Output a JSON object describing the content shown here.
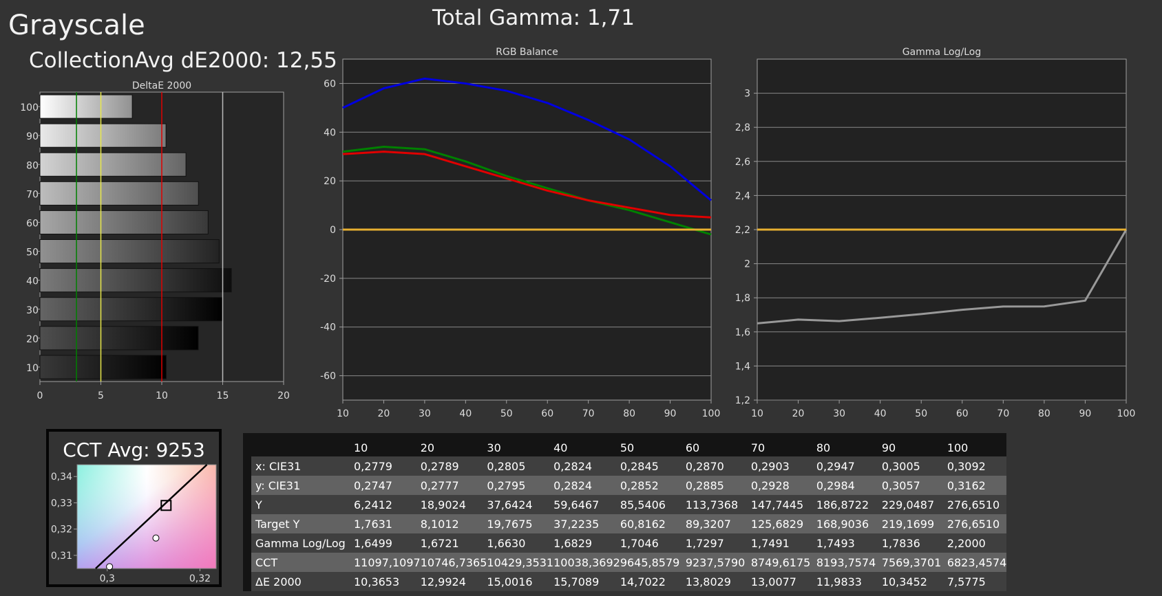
{
  "header": {
    "title": "Grayscale",
    "collection_avg": "CollectionAvg dE2000: 12,55",
    "total_gamma": "Total Gamma: 1,71"
  },
  "colors": {
    "background": "#333333",
    "plot_background": "#222222",
    "red": "#e00000",
    "green": "#008000",
    "blue": "#0000e0",
    "yellow": "#e8d84a",
    "gold": "#e8b030",
    "gray_line": "#999999"
  },
  "chart_data": [
    {
      "type": "bar",
      "orientation": "horizontal",
      "title": "DeltaE 2000",
      "categories": [
        "100",
        "90",
        "80",
        "70",
        "60",
        "50",
        "40",
        "30",
        "20",
        "10"
      ],
      "values": [
        7.5775,
        10.3452,
        11.9833,
        13.0077,
        13.8029,
        14.7022,
        15.7089,
        15.0016,
        12.9924,
        10.3653
      ],
      "xlim": [
        0,
        20
      ],
      "xticks": [
        "0",
        "5",
        "10",
        "15",
        "20"
      ],
      "reference_lines": [
        {
          "x": 3,
          "color": "#008000"
        },
        {
          "x": 5,
          "color": "#e8e84a"
        },
        {
          "x": 10,
          "color": "#e00000"
        },
        {
          "x": 15,
          "color": "#bbbbbb"
        }
      ]
    },
    {
      "type": "line",
      "title": "RGB Balance",
      "x": [
        10,
        20,
        30,
        40,
        50,
        60,
        70,
        80,
        90,
        100
      ],
      "xticks": [
        "10",
        "20",
        "30",
        "40",
        "50",
        "60",
        "70",
        "80",
        "90",
        "100"
      ],
      "ylim": [
        -70,
        70
      ],
      "yticks": [
        "60",
        "40",
        "20",
        "0",
        "-20",
        "-40",
        "-60"
      ],
      "series": [
        {
          "color": "#0000e0",
          "values": [
            50,
            58,
            62,
            60,
            57,
            52,
            45,
            37,
            26,
            12
          ]
        },
        {
          "color": "#008000",
          "values": [
            32,
            34,
            33,
            28,
            22,
            17,
            12,
            8,
            3,
            -2
          ]
        },
        {
          "color": "#e00000",
          "values": [
            31,
            32,
            31,
            26,
            21,
            16,
            12,
            9,
            6,
            5
          ]
        },
        {
          "color": "#e8b030",
          "values": [
            0,
            0,
            0,
            0,
            0,
            0,
            0,
            0,
            0,
            0
          ]
        }
      ]
    },
    {
      "type": "line",
      "title": "Gamma Log/Log",
      "x": [
        10,
        20,
        30,
        40,
        50,
        60,
        70,
        80,
        90,
        100
      ],
      "xticks": [
        "10",
        "20",
        "30",
        "40",
        "50",
        "60",
        "70",
        "80",
        "90",
        "100"
      ],
      "ylim": [
        1.2,
        3.2
      ],
      "yticks": [
        "3",
        "2,8",
        "2,6",
        "2,4",
        "2,2",
        "2",
        "1,8",
        "1,6",
        "1,4",
        "1,2"
      ],
      "series": [
        {
          "color": "#999999",
          "values": [
            1.6499,
            1.6721,
            1.663,
            1.6829,
            1.7046,
            1.7297,
            1.7491,
            1.7493,
            1.7836,
            2.2
          ]
        },
        {
          "color": "#e8b030",
          "values": [
            2.2,
            2.2,
            2.2,
            2.2,
            2.2,
            2.2,
            2.2,
            2.2,
            2.2,
            2.2
          ]
        }
      ]
    },
    {
      "type": "scatter",
      "title": "CCT Avg: 9253",
      "xlim": [
        0.2935,
        0.3235
      ],
      "ylim": [
        0.305,
        0.3445
      ],
      "xticks": [
        "0,3",
        "0,32"
      ],
      "yticks": [
        "0,34",
        "0,33",
        "0,32",
        "0,31"
      ],
      "points": [
        {
          "x": 0.3005,
          "y": 0.3057,
          "marker": "circle"
        },
        {
          "x": 0.3105,
          "y": 0.3166,
          "marker": "circle"
        },
        {
          "x": 0.3127,
          "y": 0.329,
          "marker": "square"
        }
      ],
      "locus_line": [
        [
          0.2975,
          0.305
        ],
        [
          0.3215,
          0.3445
        ]
      ]
    }
  ],
  "table": {
    "columns": [
      "10",
      "20",
      "30",
      "40",
      "50",
      "60",
      "70",
      "80",
      "90",
      "100"
    ],
    "rows": [
      {
        "label": "x: CIE31",
        "values": [
          "0,2779",
          "0,2789",
          "0,2805",
          "0,2824",
          "0,2845",
          "0,2870",
          "0,2903",
          "0,2947",
          "0,3005",
          "0,3092"
        ]
      },
      {
        "label": "y: CIE31",
        "values": [
          "0,2747",
          "0,2777",
          "0,2795",
          "0,2824",
          "0,2852",
          "0,2885",
          "0,2928",
          "0,2984",
          "0,3057",
          "0,3162"
        ]
      },
      {
        "label": "Y",
        "values": [
          "6,2412",
          "18,9024",
          "37,6424",
          "59,6467",
          "85,5406",
          "113,7368",
          "147,7445",
          "186,8722",
          "229,0487",
          "276,6510"
        ]
      },
      {
        "label": "Target Y",
        "values": [
          "1,7631",
          "8,1012",
          "19,7675",
          "37,2235",
          "60,8162",
          "89,3207",
          "125,6829",
          "168,9036",
          "219,1699",
          "276,6510"
        ]
      },
      {
        "label": "Gamma Log/Log",
        "values": [
          "1,6499",
          "1,6721",
          "1,6630",
          "1,6829",
          "1,7046",
          "1,7297",
          "1,7491",
          "1,7493",
          "1,7836",
          "2,2000"
        ]
      },
      {
        "label": "CCT",
        "values": [
          "11097,1097",
          "10746,7365",
          "10429,3531",
          "10038,3692",
          "9645,8579",
          "9237,5790",
          "8749,6175",
          "8193,7574",
          "7569,3701",
          "6823,4574"
        ]
      },
      {
        "label": "ΔE 2000",
        "values": [
          "10,3653",
          "12,9924",
          "15,0016",
          "15,7089",
          "14,7022",
          "13,8029",
          "13,0077",
          "11,9833",
          "10,3452",
          "7,5775"
        ]
      }
    ]
  }
}
